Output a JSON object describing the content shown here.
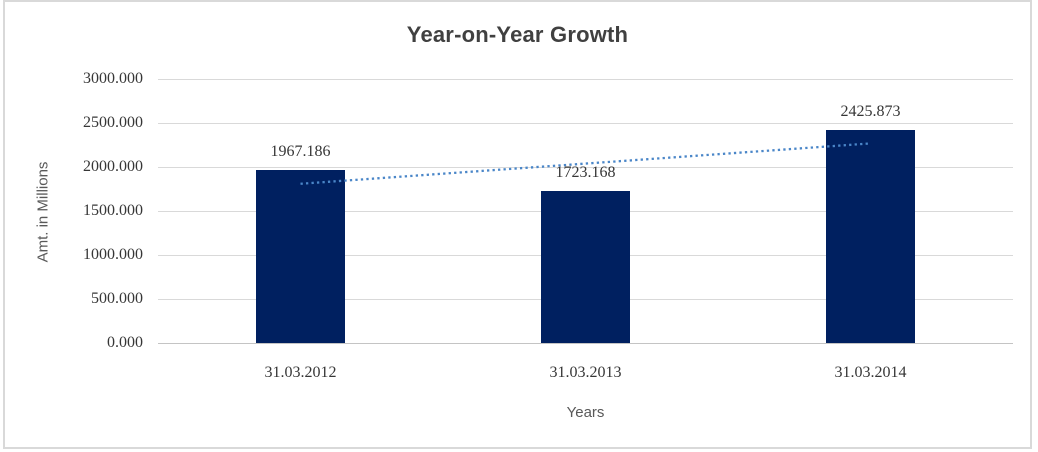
{
  "chart_data": {
    "type": "bar",
    "title": "Year-on-Year Growth",
    "xlabel": "Years",
    "ylabel": "Amt. in Millions",
    "categories": [
      "31.03.2012",
      "31.03.2013",
      "31.03.2014"
    ],
    "values": [
      1967.186,
      1723.168,
      2425.873
    ],
    "data_labels": [
      "1967.186",
      "1723.168",
      "2425.873"
    ],
    "ylim": [
      0,
      3000
    ],
    "ytick_step": 500,
    "ytick_labels": [
      "0.000",
      "500.000",
      "1000.000",
      "1500.000",
      "2000.000",
      "2500.000",
      "3000.000"
    ],
    "grid": true,
    "legend_position": "none",
    "bar_color": "#002060",
    "trendline": {
      "type": "linear",
      "style": "dotted",
      "color": "#4a86c8"
    },
    "colors": {
      "gridline": "#d9d9d9",
      "axis_line": "#c4c4c4",
      "title_text": "#404040",
      "tick_text": "#363636",
      "axis_title_text": "#595959",
      "border": "#d9d9d9"
    }
  }
}
